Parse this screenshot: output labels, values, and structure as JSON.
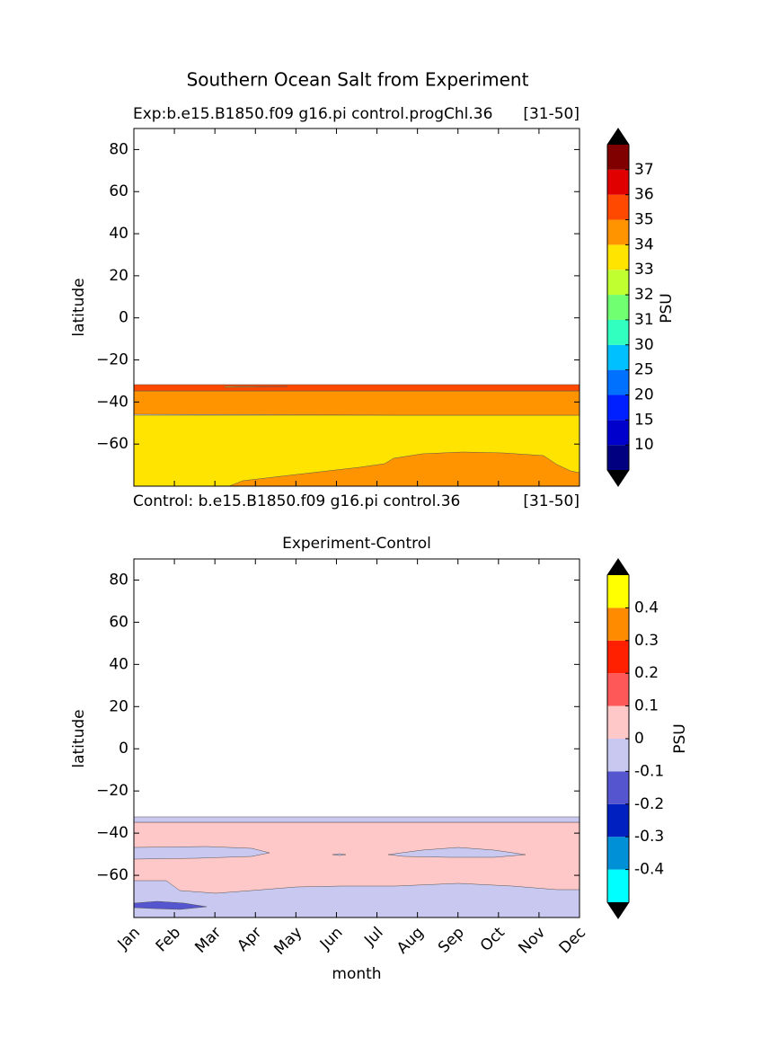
{
  "figure_title": "Southern Ocean Salt from Experiment",
  "chart_data": [
    {
      "type": "contour",
      "title_left": "Exp:b.e15.B1850.f09 g16.pi control.progChl.36",
      "title_right": "[31-50]",
      "footer_left": "Control: b.e15.B1850.f09 g16.pi control.36",
      "footer_right": "[31-50]",
      "ylabel": "latitude",
      "ylim": [
        -80,
        90
      ],
      "yticks": [
        {
          "value": -60,
          "label": "−60"
        },
        {
          "value": -40,
          "label": "−40"
        },
        {
          "value": -20,
          "label": "−20"
        },
        0,
        20,
        40,
        60,
        80
      ],
      "colorbar_label": "PSU",
      "levels": [
        10,
        15,
        20,
        25,
        30,
        31,
        32,
        33,
        34,
        35,
        36,
        37
      ],
      "colors": [
        "#000080",
        "#0000cd",
        "#0020ff",
        "#0070ff",
        "#00c0ff",
        "#30ffc0",
        "#70ff70",
        "#c0ff30",
        "#ffe400",
        "#ff9400",
        "#ff4800",
        "#e00000",
        "#800000"
      ],
      "extend_color": "#000000"
    },
    {
      "type": "contour",
      "title": "Experiment-Control",
      "xlabel": "month",
      "ylabel": "latitude",
      "categories": [
        "Jan",
        "Feb",
        "Mar",
        "Apr",
        "May",
        "Jun",
        "Jul",
        "Aug",
        "Sep",
        "Oct",
        "Nov",
        "Dec"
      ],
      "ylim": [
        -80,
        90
      ],
      "yticks": [
        {
          "value": -60,
          "label": "−60"
        },
        {
          "value": -40,
          "label": "−40"
        },
        {
          "value": -20,
          "label": "−20"
        },
        0,
        20,
        40,
        60,
        80
      ],
      "colorbar_label": "PSU",
      "levels": [
        -0.4,
        -0.3,
        -0.2,
        -0.1,
        0,
        0.1,
        0.2,
        0.3,
        0.4
      ],
      "colors": [
        "#00ffff",
        "#0090d8",
        "#0020c0",
        "#5555d0",
        "#c8c8f0",
        "#ffc8c8",
        "#ff5858",
        "#ff2000",
        "#ff8c00",
        "#ffff00"
      ],
      "extend_color": "#000000"
    }
  ]
}
